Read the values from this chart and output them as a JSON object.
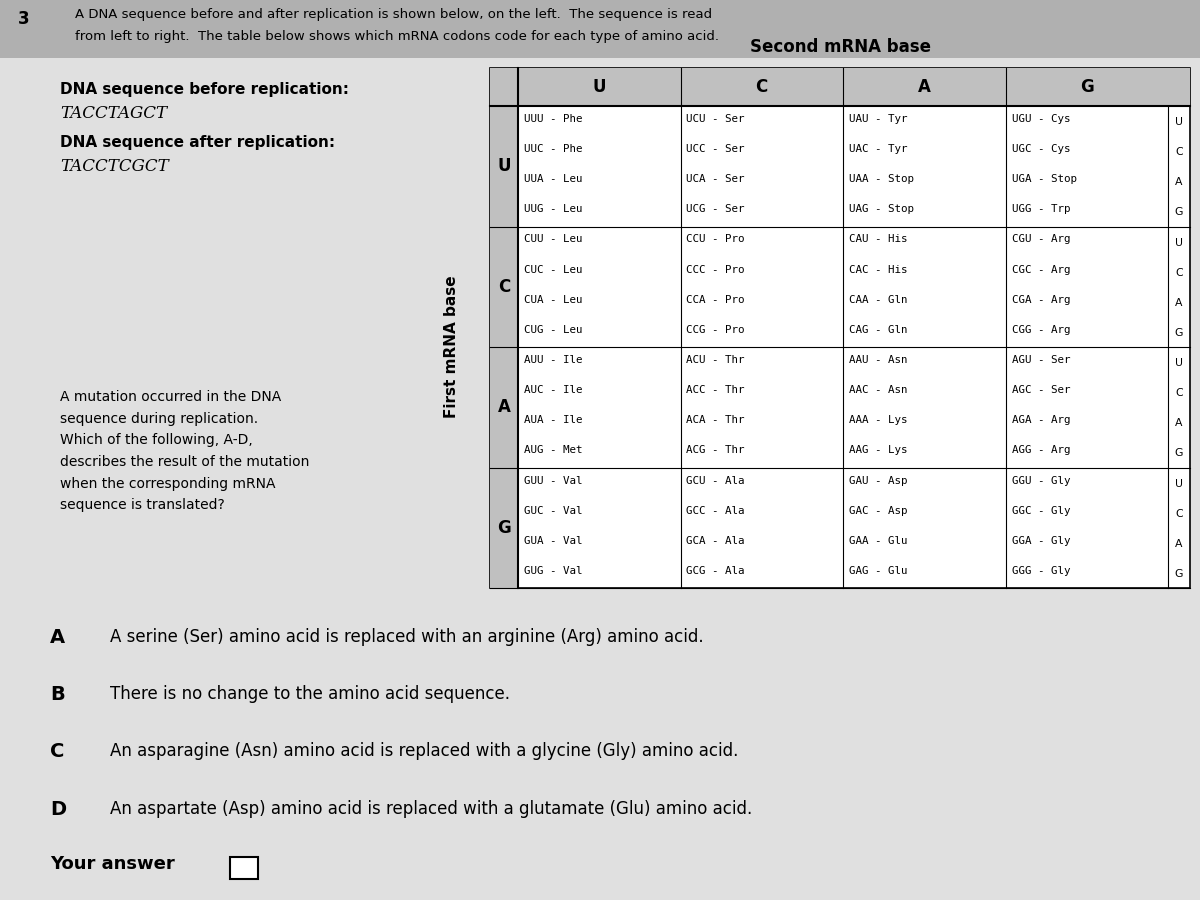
{
  "bg_color": "#cccccc",
  "page_bg": "#e0e0e0",
  "question_number": "3",
  "header_line1": "A DNA sequence before and after replication is shown below, on the left.  The sequence is read",
  "header_line2": "from left to right.  The table below shows which mRNA codons code for each type of amino acid.",
  "dna_before_label": "DNA sequence before replication:",
  "dna_before_seq": "TACCTAGCT",
  "dna_after_label": "DNA sequence after replication:",
  "dna_after_seq": "TACCTCGCT",
  "mutation_text": "A mutation occurred in the DNA\nsequence during replication.\nWhich of the following, A-D,\ndescribes the result of the mutation\nwhen the corresponding mRNA\nsequence is translated?",
  "second_mrna_label": "Second mRNA base",
  "first_mrna_label": "First mRNA base",
  "col_headers": [
    "U",
    "C",
    "A",
    "G"
  ],
  "row_headers": [
    "U",
    "C",
    "A",
    "G"
  ],
  "table_data": [
    [
      [
        "UUU - Phe",
        "UUC - Phe",
        "UUA - Leu",
        "UUG - Leu"
      ],
      [
        "UCU - Ser",
        "UCC - Ser",
        "UCA - Ser",
        "UCG - Ser"
      ],
      [
        "UAU - Tyr",
        "UAC - Tyr",
        "UAA - Stop",
        "UAG - Stop"
      ],
      [
        "UGU - Cys",
        "UGC - Cys",
        "UGA - Stop",
        "UGG - Trp"
      ]
    ],
    [
      [
        "CUU - Leu",
        "CUC - Leu",
        "CUA - Leu",
        "CUG - Leu"
      ],
      [
        "CCU - Pro",
        "CCC - Pro",
        "CCA - Pro",
        "CCG - Pro"
      ],
      [
        "CAU - His",
        "CAC - His",
        "CAA - Gln",
        "CAG - Gln"
      ],
      [
        "CGU - Arg",
        "CGC - Arg",
        "CGA - Arg",
        "CGG - Arg"
      ]
    ],
    [
      [
        "AUU - Ile",
        "AUC - Ile",
        "AUA - Ile",
        "AUG - Met"
      ],
      [
        "ACU - Thr",
        "ACC - Thr",
        "ACA - Thr",
        "ACG - Thr"
      ],
      [
        "AAU - Asn",
        "AAC - Asn",
        "AAA - Lys",
        "AAG - Lys"
      ],
      [
        "AGU - Ser",
        "AGC - Ser",
        "AGA - Arg",
        "AGG - Arg"
      ]
    ],
    [
      [
        "GUU - Val",
        "GUC - Val",
        "GUA - Val",
        "GUG - Val"
      ],
      [
        "GCU - Ala",
        "GCC - Ala",
        "GCA - Ala",
        "GCG - Ala"
      ],
      [
        "GAU - Asp",
        "GAC - Asp",
        "GAA - Glu",
        "GAG - Glu"
      ],
      [
        "GGU - Gly",
        "GGC - Gly",
        "GGA - Gly",
        "GGG - Gly"
      ]
    ]
  ],
  "answer_A": "A serine (Ser) amino acid is replaced with an arginine (Arg) amino acid.",
  "answer_B": "There is no change to the amino acid sequence.",
  "answer_C": "An asparagine (Asn) amino acid is replaced with a glycine (Gly) amino acid.",
  "answer_D": "An aspartate (Asp) amino acid is replaced with a glutamate (Glu) amino acid.",
  "your_answer_label": "Your answer",
  "header_gray": "#b0b0b0",
  "cell_gray": "#c0c0c0",
  "white": "#ffffff",
  "black": "#000000"
}
